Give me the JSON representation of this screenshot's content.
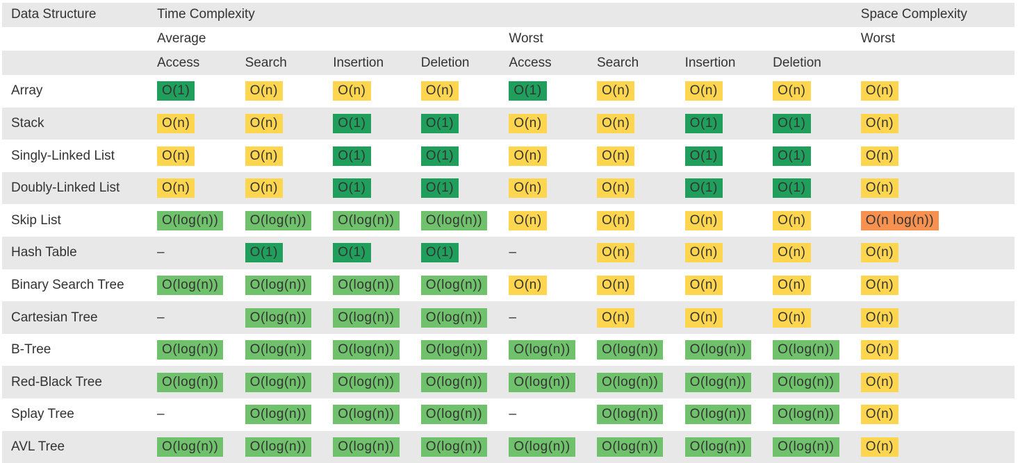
{
  "header": {
    "group_row": [
      "Data Structure",
      "Time Complexity",
      "Space Complexity"
    ],
    "sub_row": [
      "Average",
      "Worst",
      "Worst"
    ],
    "op_row": [
      "Access",
      "Search",
      "Insertion",
      "Deletion",
      "Access",
      "Search",
      "Insertion",
      "Deletion"
    ]
  },
  "rows": [
    {
      "name": "Array",
      "cells": [
        {
          "text": "O(1)",
          "color": "#1f9e5c"
        },
        {
          "text": "O(n)",
          "color": "#fdd54e"
        },
        {
          "text": "O(n)",
          "color": "#fdd54e"
        },
        {
          "text": "O(n)",
          "color": "#fdd54e"
        },
        {
          "text": "O(1)",
          "color": "#1f9e5c"
        },
        {
          "text": "O(n)",
          "color": "#fdd54e"
        },
        {
          "text": "O(n)",
          "color": "#fdd54e"
        },
        {
          "text": "O(n)",
          "color": "#fdd54e"
        },
        {
          "text": "O(n)",
          "color": "#fdd54e"
        }
      ]
    },
    {
      "name": "Stack",
      "cells": [
        {
          "text": "O(n)",
          "color": "#fdd54e"
        },
        {
          "text": "O(n)",
          "color": "#fdd54e"
        },
        {
          "text": "O(1)",
          "color": "#1f9e5c"
        },
        {
          "text": "O(1)",
          "color": "#1f9e5c"
        },
        {
          "text": "O(n)",
          "color": "#fdd54e"
        },
        {
          "text": "O(n)",
          "color": "#fdd54e"
        },
        {
          "text": "O(1)",
          "color": "#1f9e5c"
        },
        {
          "text": "O(1)",
          "color": "#1f9e5c"
        },
        {
          "text": "O(n)",
          "color": "#fdd54e"
        }
      ]
    },
    {
      "name": "Singly-Linked List",
      "cells": [
        {
          "text": "O(n)",
          "color": "#fdd54e"
        },
        {
          "text": "O(n)",
          "color": "#fdd54e"
        },
        {
          "text": "O(1)",
          "color": "#1f9e5c"
        },
        {
          "text": "O(1)",
          "color": "#1f9e5c"
        },
        {
          "text": "O(n)",
          "color": "#fdd54e"
        },
        {
          "text": "O(n)",
          "color": "#fdd54e"
        },
        {
          "text": "O(1)",
          "color": "#1f9e5c"
        },
        {
          "text": "O(1)",
          "color": "#1f9e5c"
        },
        {
          "text": "O(n)",
          "color": "#fdd54e"
        }
      ]
    },
    {
      "name": "Doubly-Linked List",
      "cells": [
        {
          "text": "O(n)",
          "color": "#fdd54e"
        },
        {
          "text": "O(n)",
          "color": "#fdd54e"
        },
        {
          "text": "O(1)",
          "color": "#1f9e5c"
        },
        {
          "text": "O(1)",
          "color": "#1f9e5c"
        },
        {
          "text": "O(n)",
          "color": "#fdd54e"
        },
        {
          "text": "O(n)",
          "color": "#fdd54e"
        },
        {
          "text": "O(1)",
          "color": "#1f9e5c"
        },
        {
          "text": "O(1)",
          "color": "#1f9e5c"
        },
        {
          "text": "O(n)",
          "color": "#fdd54e"
        }
      ]
    },
    {
      "name": "Skip List",
      "cells": [
        {
          "text": "O(log(n))",
          "color": "#70c16c"
        },
        {
          "text": "O(log(n))",
          "color": "#70c16c"
        },
        {
          "text": "O(log(n))",
          "color": "#70c16c"
        },
        {
          "text": "O(log(n))",
          "color": "#70c16c"
        },
        {
          "text": "O(n)",
          "color": "#fdd54e"
        },
        {
          "text": "O(n)",
          "color": "#fdd54e"
        },
        {
          "text": "O(n)",
          "color": "#fdd54e"
        },
        {
          "text": "O(n)",
          "color": "#fdd54e"
        },
        {
          "text": "O(n log(n))",
          "color": "#f6914f"
        }
      ]
    },
    {
      "name": "Hash Table",
      "cells": [
        "–",
        {
          "text": "O(1)",
          "color": "#1f9e5c"
        },
        {
          "text": "O(1)",
          "color": "#1f9e5c"
        },
        {
          "text": "O(1)",
          "color": "#1f9e5c"
        },
        "–",
        {
          "text": "O(n)",
          "color": "#fdd54e"
        },
        {
          "text": "O(n)",
          "color": "#fdd54e"
        },
        {
          "text": "O(n)",
          "color": "#fdd54e"
        },
        {
          "text": "O(n)",
          "color": "#fdd54e"
        }
      ]
    },
    {
      "name": "Binary Search Tree",
      "cells": [
        {
          "text": "O(log(n))",
          "color": "#70c16c"
        },
        {
          "text": "O(log(n))",
          "color": "#70c16c"
        },
        {
          "text": "O(log(n))",
          "color": "#70c16c"
        },
        {
          "text": "O(log(n))",
          "color": "#70c16c"
        },
        {
          "text": "O(n)",
          "color": "#fdd54e"
        },
        {
          "text": "O(n)",
          "color": "#fdd54e"
        },
        {
          "text": "O(n)",
          "color": "#fdd54e"
        },
        {
          "text": "O(n)",
          "color": "#fdd54e"
        },
        {
          "text": "O(n)",
          "color": "#fdd54e"
        }
      ]
    },
    {
      "name": "Cartesian Tree",
      "cells": [
        "–",
        {
          "text": "O(log(n))",
          "color": "#70c16c"
        },
        {
          "text": "O(log(n))",
          "color": "#70c16c"
        },
        {
          "text": "O(log(n))",
          "color": "#70c16c"
        },
        "–",
        {
          "text": "O(n)",
          "color": "#fdd54e"
        },
        {
          "text": "O(n)",
          "color": "#fdd54e"
        },
        {
          "text": "O(n)",
          "color": "#fdd54e"
        },
        {
          "text": "O(n)",
          "color": "#fdd54e"
        }
      ]
    },
    {
      "name": "B-Tree",
      "cells": [
        {
          "text": "O(log(n))",
          "color": "#70c16c"
        },
        {
          "text": "O(log(n))",
          "color": "#70c16c"
        },
        {
          "text": "O(log(n))",
          "color": "#70c16c"
        },
        {
          "text": "O(log(n))",
          "color": "#70c16c"
        },
        {
          "text": "O(log(n))",
          "color": "#70c16c"
        },
        {
          "text": "O(log(n))",
          "color": "#70c16c"
        },
        {
          "text": "O(log(n))",
          "color": "#70c16c"
        },
        {
          "text": "O(log(n))",
          "color": "#70c16c"
        },
        {
          "text": "O(n)",
          "color": "#fdd54e"
        }
      ]
    },
    {
      "name": "Red-Black Tree",
      "cells": [
        {
          "text": "O(log(n))",
          "color": "#70c16c"
        },
        {
          "text": "O(log(n))",
          "color": "#70c16c"
        },
        {
          "text": "O(log(n))",
          "color": "#70c16c"
        },
        {
          "text": "O(log(n))",
          "color": "#70c16c"
        },
        {
          "text": "O(log(n))",
          "color": "#70c16c"
        },
        {
          "text": "O(log(n))",
          "color": "#70c16c"
        },
        {
          "text": "O(log(n))",
          "color": "#70c16c"
        },
        {
          "text": "O(log(n))",
          "color": "#70c16c"
        },
        {
          "text": "O(n)",
          "color": "#fdd54e"
        }
      ]
    },
    {
      "name": "Splay Tree",
      "cells": [
        "–",
        {
          "text": "O(log(n))",
          "color": "#70c16c"
        },
        {
          "text": "O(log(n))",
          "color": "#70c16c"
        },
        {
          "text": "O(log(n))",
          "color": "#70c16c"
        },
        "–",
        {
          "text": "O(log(n))",
          "color": "#70c16c"
        },
        {
          "text": "O(log(n))",
          "color": "#70c16c"
        },
        {
          "text": "O(log(n))",
          "color": "#70c16c"
        },
        {
          "text": "O(n)",
          "color": "#fdd54e"
        }
      ]
    },
    {
      "name": "AVL Tree",
      "cells": [
        {
          "text": "O(log(n))",
          "color": "#70c16c"
        },
        {
          "text": "O(log(n))",
          "color": "#70c16c"
        },
        {
          "text": "O(log(n))",
          "color": "#70c16c"
        },
        {
          "text": "O(log(n))",
          "color": "#70c16c"
        },
        {
          "text": "O(log(n))",
          "color": "#70c16c"
        },
        {
          "text": "O(log(n))",
          "color": "#70c16c"
        },
        {
          "text": "O(log(n))",
          "color": "#70c16c"
        },
        {
          "text": "O(log(n))",
          "color": "#70c16c"
        },
        {
          "text": "O(n)",
          "color": "#fdd54e"
        }
      ]
    }
  ]
}
